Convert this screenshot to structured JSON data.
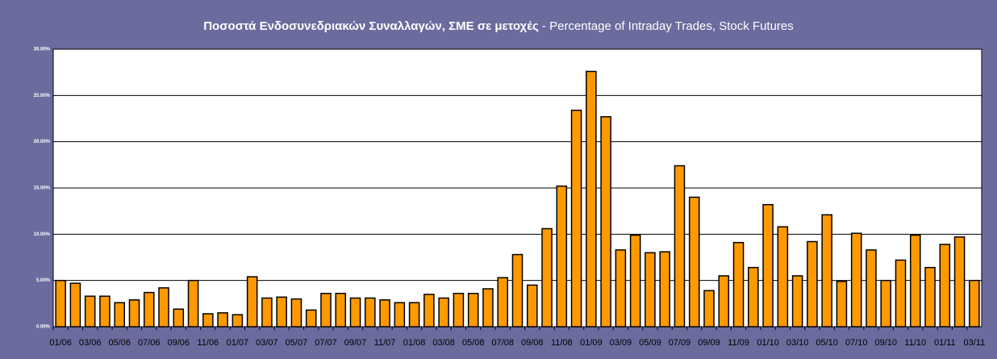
{
  "chart_data": {
    "type": "bar",
    "title": "Ποσοστά Ενδοσυνεδριακών Συναλλαγών, ΣΜΕ σε μετοχές",
    "subtitle": " - Percentage of Intraday Trades, Stock Futures",
    "categories": [
      "01/06",
      null,
      "03/06",
      null,
      "05/06",
      null,
      "07/06",
      null,
      "09/06",
      null,
      "11/06",
      null,
      "01/07",
      null,
      "03/07",
      null,
      "05/07",
      null,
      "07/07",
      null,
      "09/07",
      null,
      "11/07",
      null,
      "01/08",
      null,
      "03/08",
      null,
      "05/08",
      null,
      "07/08",
      null,
      "09/08",
      null,
      "11/08",
      null,
      "01/09",
      null,
      "03/09",
      null,
      "05/09",
      null,
      "07/09",
      null,
      "09/09",
      null,
      "11/09",
      null,
      "01/10",
      null,
      "03/10",
      null,
      "05/10",
      null,
      "07/10",
      null,
      "09/10",
      null,
      "11/10",
      null,
      "01/11",
      null,
      "03/11"
    ],
    "values": [
      5.0,
      4.7,
      3.3,
      3.3,
      2.6,
      2.9,
      3.7,
      4.2,
      1.9,
      5.0,
      1.4,
      1.5,
      1.3,
      5.4,
      3.1,
      3.2,
      3.0,
      1.8,
      3.6,
      3.6,
      3.1,
      3.1,
      2.9,
      2.6,
      2.6,
      3.5,
      3.1,
      3.6,
      3.6,
      4.1,
      5.3,
      7.8,
      4.5,
      10.6,
      15.2,
      23.4,
      27.6,
      22.7,
      8.3,
      9.9,
      8.0,
      8.1,
      17.4,
      14.0,
      3.9,
      5.5,
      9.1,
      6.4,
      13.2,
      10.8,
      5.5,
      9.2,
      12.1,
      4.9,
      10.1,
      8.3,
      5.0,
      7.2,
      9.9,
      6.4,
      8.9,
      9.7,
      5.0
    ],
    "color": "#ff9900",
    "ylim": [
      0,
      30
    ],
    "yticks": [
      {
        "value": 0,
        "label": "0.00%"
      },
      {
        "value": 5,
        "label": "5.00%"
      },
      {
        "value": 10,
        "label": "10.00%"
      },
      {
        "value": 15,
        "label": "15.00%"
      },
      {
        "value": 20,
        "label": "20.00%"
      },
      {
        "value": 25,
        "label": "25.00%"
      },
      {
        "value": 30,
        "label": "30.00%"
      }
    ],
    "grid": true
  }
}
